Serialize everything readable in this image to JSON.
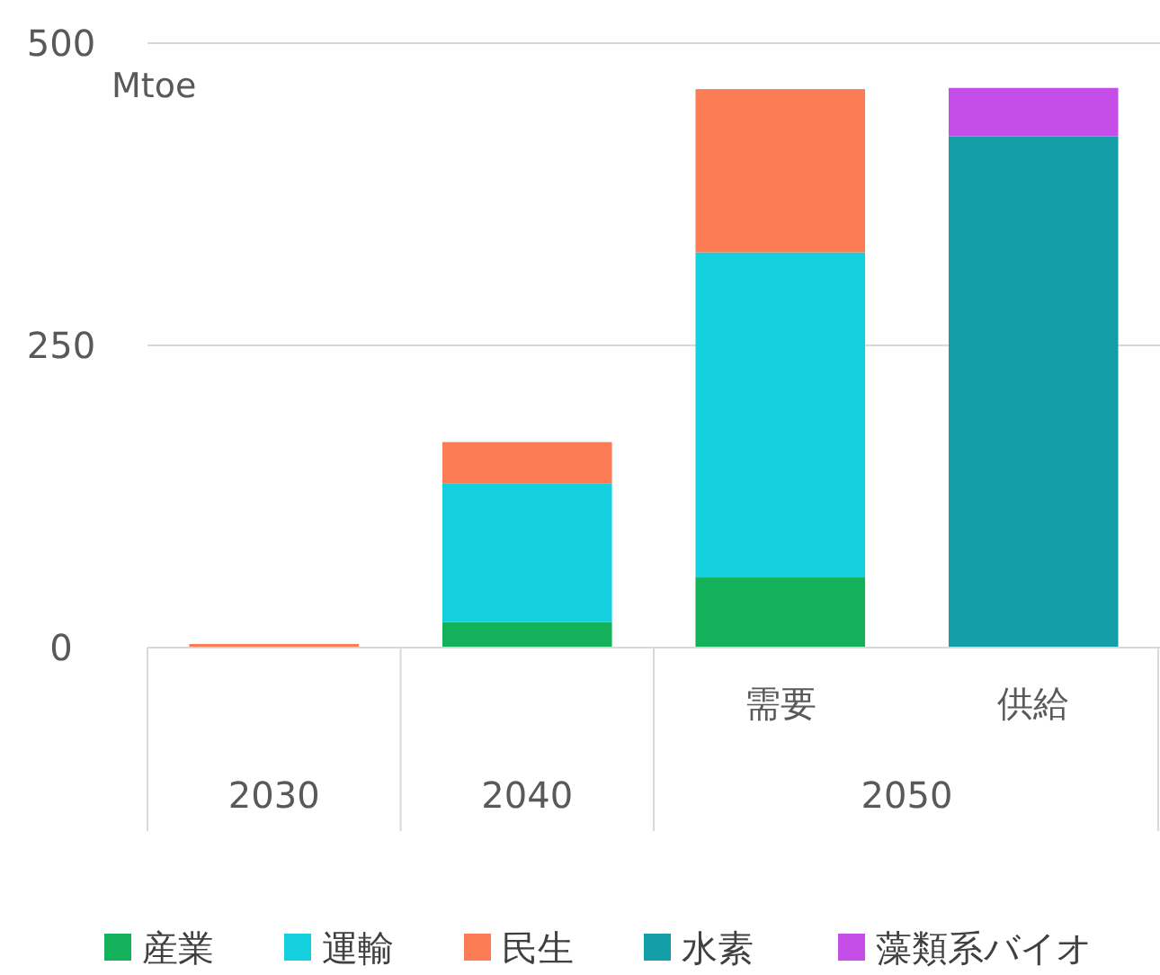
{
  "chart_data": {
    "type": "bar",
    "stacked": true,
    "ylabel": "Mtoe",
    "categories": [
      "2030",
      "2040",
      "需要",
      "供給"
    ],
    "annotations": [
      "2050"
    ],
    "series": [
      {
        "name": "産業",
        "color": "#13b159",
        "values": [
          null,
          21,
          58,
          null
        ]
      },
      {
        "name": "運輸",
        "color": "#14d0de",
        "values": [
          null,
          115,
          269,
          null
        ]
      },
      {
        "name": "民生",
        "color": "#fc7c55",
        "values": [
          3,
          34,
          135,
          null
        ]
      },
      {
        "name": "水素",
        "color": "#139ea8",
        "values": [
          null,
          null,
          null,
          423
        ]
      },
      {
        "name": "藻類系バイオ",
        "color": "#c54de8",
        "values": [
          null,
          null,
          null,
          40
        ]
      }
    ],
    "ylim": [
      0,
      500
    ],
    "yticks": [
      0,
      250,
      500
    ],
    "grid": "y",
    "legend": "bottom"
  }
}
